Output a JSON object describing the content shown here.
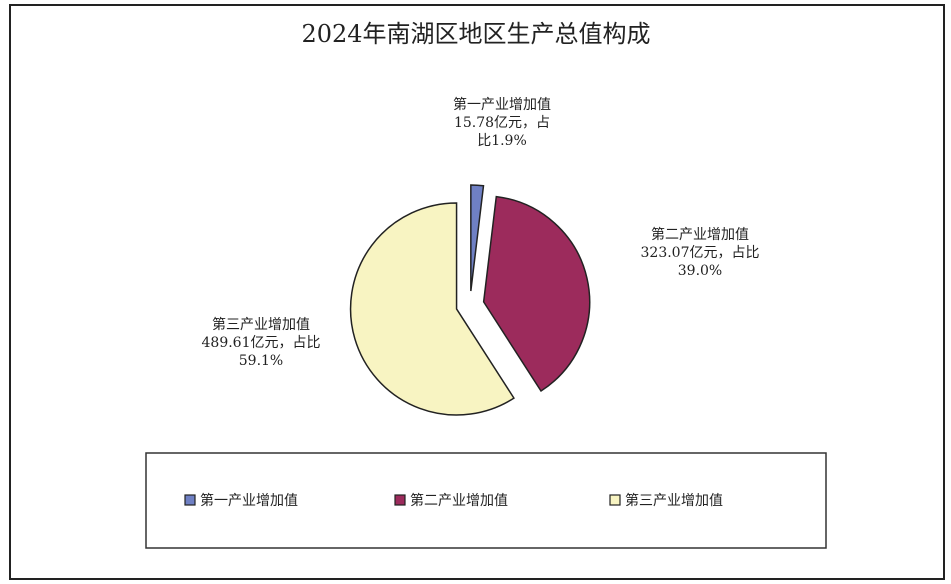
{
  "chart_data": {
    "type": "pie",
    "title": "2024年南湖区地区生产总值构成",
    "categories": [
      "第一产业增加值",
      "第二产业增加值",
      "第三产业增加值"
    ],
    "values": [
      15.78,
      323.07,
      489.61
    ],
    "value_labels": [
      "15.78亿元，占比1.9%",
      "323.07亿元，占比39.0%",
      "489.61亿元，占比59.1%"
    ],
    "colors": [
      "#6f80c4",
      "#9c2b5c",
      "#f8f4c2"
    ],
    "legend": "bottom"
  }
}
